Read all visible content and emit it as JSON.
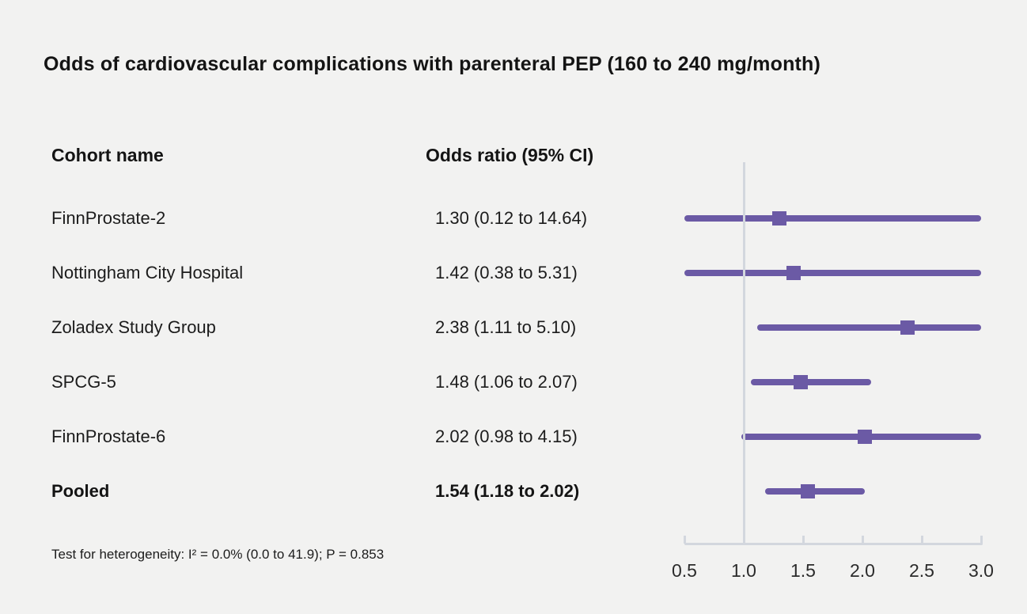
{
  "title": "Odds of cardiovascular complications with parenteral PEP (160 to 240 mg/month)",
  "columns": {
    "cohort_header": "Cohort name",
    "odds_header": "Odds ratio (95% CI)"
  },
  "footer": "Test for heterogeneity: I² = 0.0% (0.0 to 41.9); P = 0.853",
  "colors": {
    "background": "#f2f2f1",
    "marker_purple": "#6b5aa5",
    "reference_gray": "#d3d7de",
    "text": "#1c1c1c"
  },
  "chart_data": {
    "type": "scatter",
    "subtype": "forest-plot",
    "title": "Odds of cardiovascular complications with parenteral PEP (160 to 240 mg/month)",
    "xlabel": "",
    "ylabel": "",
    "x_range": [
      0.5,
      3.0
    ],
    "x_ticks": [
      "0.5",
      "1.0",
      "1.5",
      "2.0",
      "2.5",
      "3.0"
    ],
    "x_tick_values": [
      0.5,
      1.0,
      1.5,
      2.0,
      2.5,
      3.0
    ],
    "reference_line": 1.0,
    "grid": false,
    "legend": false,
    "rows": [
      {
        "name": "FinnProstate-2",
        "value_label": "1.30 (0.12 to 14.64)",
        "or": 1.3,
        "ci_low": 0.12,
        "ci_high": 14.64,
        "bold": false
      },
      {
        "name": "Nottingham City Hospital",
        "value_label": "1.42 (0.38 to 5.31)",
        "or": 1.42,
        "ci_low": 0.38,
        "ci_high": 5.31,
        "bold": false
      },
      {
        "name": "Zoladex Study Group",
        "value_label": "2.38 (1.11 to 5.10)",
        "or": 2.38,
        "ci_low": 1.11,
        "ci_high": 5.1,
        "bold": false
      },
      {
        "name": "SPCG-5",
        "value_label": "1.48 (1.06 to 2.07)",
        "or": 1.48,
        "ci_low": 1.06,
        "ci_high": 2.07,
        "bold": false
      },
      {
        "name": "FinnProstate-6",
        "value_label": "2.02 (0.98 to 4.15)",
        "or": 2.02,
        "ci_low": 0.98,
        "ci_high": 4.15,
        "bold": false
      },
      {
        "name": "Pooled",
        "value_label": "1.54 (1.18 to 2.02)",
        "or": 1.54,
        "ci_low": 1.18,
        "ci_high": 2.02,
        "bold": true
      }
    ]
  }
}
